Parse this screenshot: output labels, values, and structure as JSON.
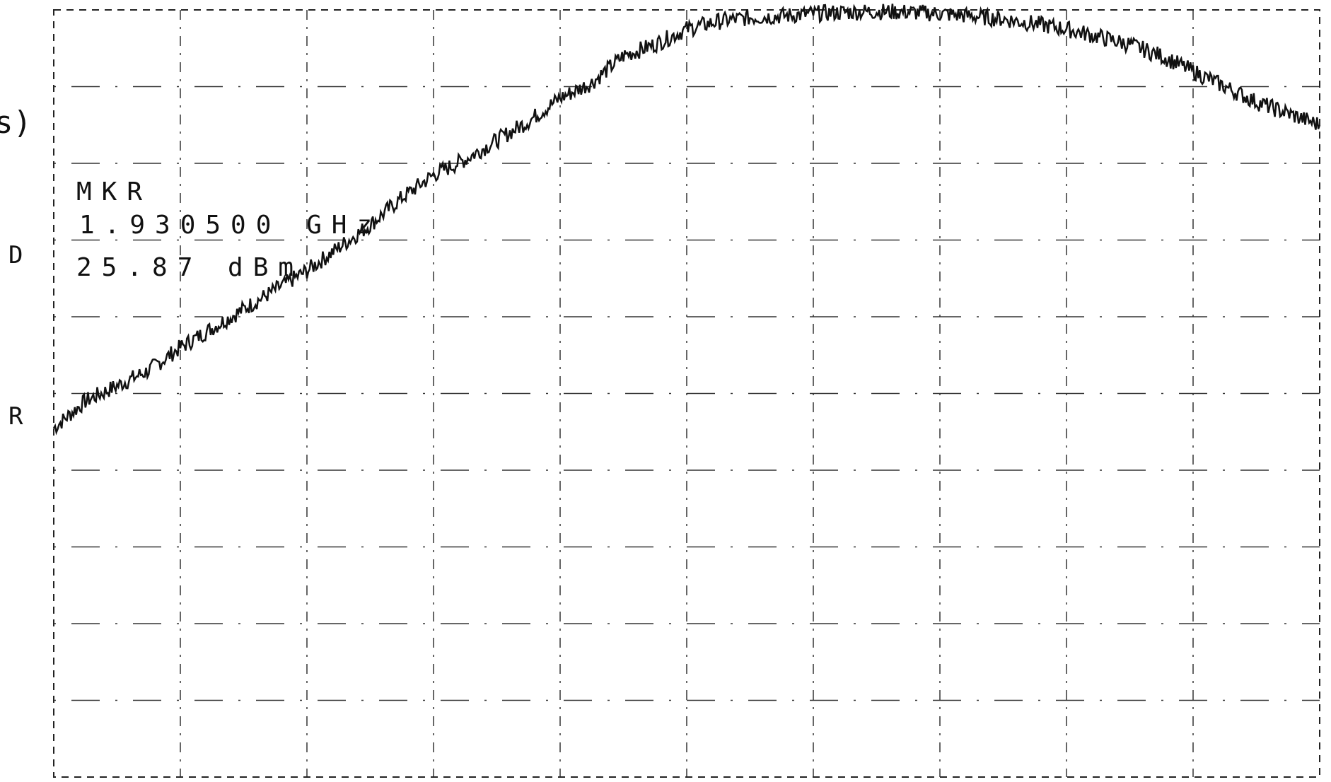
{
  "chart_data": {
    "type": "line",
    "title": "",
    "xlabel": "",
    "ylabel": "",
    "x_range": [
      0,
      10
    ],
    "ylim": [
      0,
      10
    ],
    "grid": true,
    "trace_color": "#111111",
    "series": [
      {
        "values": [
          [
            0.0,
            4.55
          ],
          [
            0.25,
            4.9
          ],
          [
            0.5,
            5.1
          ],
          [
            0.75,
            5.3
          ],
          [
            1.0,
            5.6
          ],
          [
            1.25,
            5.85
          ],
          [
            1.5,
            6.1
          ],
          [
            1.75,
            6.35
          ],
          [
            2.0,
            6.6
          ],
          [
            2.25,
            6.9
          ],
          [
            2.5,
            7.2
          ],
          [
            2.75,
            7.55
          ],
          [
            3.0,
            7.85
          ],
          [
            3.25,
            8.05
          ],
          [
            3.5,
            8.3
          ],
          [
            3.75,
            8.55
          ],
          [
            4.0,
            8.85
          ],
          [
            4.25,
            9.05
          ],
          [
            4.5,
            9.4
          ],
          [
            4.75,
            9.55
          ],
          [
            5.0,
            9.75
          ],
          [
            5.25,
            9.85
          ],
          [
            5.5,
            9.9
          ],
          [
            5.75,
            9.92
          ],
          [
            6.0,
            9.95
          ],
          [
            6.25,
            9.97
          ],
          [
            6.5,
            9.98
          ],
          [
            6.75,
            9.97
          ],
          [
            7.0,
            9.95
          ],
          [
            7.25,
            9.92
          ],
          [
            7.5,
            9.88
          ],
          [
            7.75,
            9.82
          ],
          [
            8.0,
            9.75
          ],
          [
            8.25,
            9.65
          ],
          [
            8.5,
            9.55
          ],
          [
            8.75,
            9.4
          ],
          [
            9.0,
            9.2
          ],
          [
            9.25,
            9.0
          ],
          [
            9.5,
            8.8
          ],
          [
            9.75,
            8.65
          ],
          [
            10.0,
            8.5
          ]
        ]
      }
    ]
  },
  "markers": {
    "left_label_d": "D",
    "left_label_r": "R",
    "left_label_paren": "s)"
  },
  "marker_readout": {
    "label": "MKR",
    "frequency": "1.930500 GHz",
    "level": "25.87 dBm"
  }
}
